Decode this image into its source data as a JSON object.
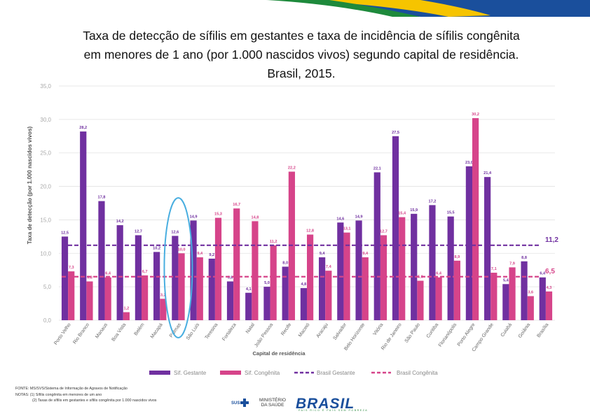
{
  "page": {
    "colors": {
      "gestante": "#7030A0",
      "congenita": "#D6448A",
      "band_green": "#1E8A3C",
      "band_yellow": "#F6C400",
      "band_blue": "#1A4F9C",
      "oval": "#49AEE0",
      "grid": "#E2E2E2",
      "tick": "#AAAAAA"
    }
  },
  "title": {
    "line1": "Taxa de detecção de sífilis em gestantes e taxa de incidência de sífilis congênita",
    "line2": "em menores de 1 ano (por 1.000 nascidos vivos) segundo capital de residência.",
    "line3": "Brasil, 2015."
  },
  "chart_data": {
    "type": "bar",
    "title": "Taxa de detecção de sífilis em gestantes e taxa de incidência de sífilis congênita em menores de 1 ano (por 1.000 nascidos vivos) segundo capital de residência. Brasil, 2015.",
    "xlabel": "Capital de residência",
    "ylabel": "Taxa de detecção (por 1.000 nascidos vivos)",
    "ylim": [
      0,
      35
    ],
    "yticks": [
      "0,0",
      "5,0",
      "10,0",
      "15,0",
      "20,0",
      "25,0",
      "30,0",
      "35,0"
    ],
    "categories": [
      "Porto Velho",
      "Rio Branco",
      "Manaus",
      "Boa Vista",
      "Belém",
      "Macapá",
      "Palmas",
      "São Luís",
      "Teresina",
      "Fortaleza",
      "Natal",
      "João Pessoa",
      "Recife",
      "Maceió",
      "Aracaju",
      "Salvador",
      "Belo Horizonte",
      "Vitória",
      "Rio de Janeiro",
      "São Paulo",
      "Curitiba",
      "Florianópolis",
      "Porto Alegre",
      "Campo Grande",
      "Cuiabá",
      "Goiânia",
      "Brasília"
    ],
    "series": [
      {
        "name": "Sif. Gestante",
        "values": [
          12.5,
          28.2,
          17.8,
          14.2,
          12.7,
          10.2,
          12.6,
          14.9,
          9.2,
          5.8,
          4.1,
          5.0,
          8.0,
          4.8,
          9.4,
          14.6,
          14.9,
          22.1,
          27.5,
          15.9,
          17.2,
          15.5,
          23.0,
          21.4,
          5.4,
          8.8,
          6.4
        ],
        "labels": [
          "12,5",
          "28,2",
          "17,8",
          "14,2",
          "12,7",
          "10,2",
          "12,6",
          "14,9",
          "9,2",
          "5,8",
          "4,1",
          "5,0",
          "8,0",
          "4,8",
          "9,4",
          "14,6",
          "14,9",
          "22,1",
          "27,5",
          "15,9",
          "17,2",
          "15,5",
          "23,0",
          "21,4",
          "5,4",
          "8,8",
          "6,4"
        ]
      },
      {
        "name": "Sif. Congênita",
        "values": [
          7.3,
          5.8,
          6.4,
          1.2,
          6.7,
          3.2,
          10.0,
          9.4,
          15.3,
          16.7,
          14.8,
          11.2,
          22.2,
          12.8,
          7.4,
          13.1,
          9.4,
          12.7,
          15.4,
          5.9,
          6.4,
          8.9,
          30.2,
          7.1,
          7.9,
          3.6,
          4.3
        ],
        "labels": [
          "7,3",
          "5,8",
          "6,4",
          "1,2",
          "6,7",
          "3,2",
          "10,0",
          "9,4",
          "15,3",
          "16,7",
          "14,8",
          "11,2",
          "22,2",
          "12,8",
          "7,4",
          "13,1",
          "9,4",
          "12,7",
          "15,4",
          "5,9",
          "6,4",
          "8,9",
          "30,2",
          "7,1",
          "7,9",
          "3,6",
          "4,3"
        ]
      }
    ],
    "reference_lines": [
      {
        "name": "Brasil Gestante",
        "value": 11.2,
        "label": "11,2"
      },
      {
        "name": "Brasil Congênita",
        "value": 6.5,
        "label": "6,5"
      }
    ],
    "highlighted_category": "Palmas",
    "legend": [
      {
        "label": "Sif. Gestante"
      },
      {
        "label": "Sif. Congênita"
      },
      {
        "label": "Brasil Gestante"
      },
      {
        "label": "Brasil Congênita"
      }
    ],
    "legend_position": "bottom",
    "grid": true
  },
  "footer": {
    "line1": "FONTE: MS/SVS/Sistema de Informação de Agravos de Notificação",
    "line2": "NOTAS: (1) Sífilis congênita em menores de um ano",
    "line3": "(2) Taxas de sífilis em gestantes e sífilis congênita por 1.000 nascidos vivos"
  },
  "logos": {
    "sus": "SUS",
    "ministerio_line1": "MINISTÉRIO",
    "ministerio_line2": "DA SAÚDE",
    "brasil": "BRASIL",
    "brasil_sub": "PAÍS RICO É PAÍS SEM POBREZA"
  }
}
